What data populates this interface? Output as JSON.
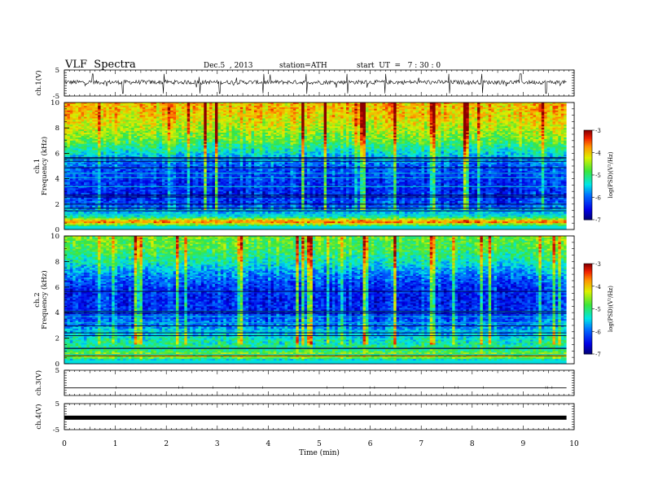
{
  "header": {
    "title": "VLF  Spectra",
    "date": "Dec.5  , 2013",
    "station": "station=ATH",
    "start": "start  UT  =   7 : 30 : 0"
  },
  "chart_data": [
    {
      "type": "line",
      "panel": "ch1-waveform",
      "ylabel": "ch.1(V)",
      "ylim": [
        -5,
        5
      ],
      "yticks": [
        -5,
        5
      ],
      "xlim": [
        0,
        10
      ],
      "baseline": 0.3,
      "spike_times_min": [
        0.55,
        1.15,
        1.95,
        2.65,
        3.05,
        3.9,
        4.75,
        5.55,
        6.3,
        7.55,
        8.2,
        8.95,
        9.45
      ]
    },
    {
      "type": "heatmap",
      "panel": "ch1-spectrogram",
      "ylabel": "ch.1\nFrequency  (kHz)",
      "ylim": [
        0,
        10
      ],
      "yticks": [
        0,
        2,
        4,
        6,
        8,
        10
      ],
      "xlim": [
        0,
        9.85
      ],
      "colorbar": {
        "label": "log(PSD)(V²/Hz)",
        "range": [
          -7,
          -3
        ],
        "ticks": [
          -3,
          -4,
          -5,
          -6,
          -7
        ]
      },
      "profile": [
        {
          "f_khz": 10,
          "logpsd": -3.9
        },
        {
          "f_khz": 9,
          "logpsd": -4.0
        },
        {
          "f_khz": 8,
          "logpsd": -4.3
        },
        {
          "f_khz": 7,
          "logpsd": -4.7
        },
        {
          "f_khz": 6,
          "logpsd": -5.4
        },
        {
          "f_khz": 5,
          "logpsd": -6.0
        },
        {
          "f_khz": 4,
          "logpsd": -6.2
        },
        {
          "f_khz": 3,
          "logpsd": -6.3
        },
        {
          "f_khz": 2,
          "logpsd": -6.1
        },
        {
          "f_khz": 1,
          "logpsd": -5.3
        },
        {
          "f_khz": 0.6,
          "logpsd": -3.5
        },
        {
          "f_khz": 0.3,
          "logpsd": -5.0
        },
        {
          "f_khz": 0,
          "logpsd": -6.8
        }
      ]
    },
    {
      "type": "heatmap",
      "panel": "ch2-spectrogram",
      "ylabel": "ch.2\nFrequency  (kHz)",
      "ylim": [
        0,
        10
      ],
      "yticks": [
        0,
        2,
        4,
        6,
        8,
        10
      ],
      "xlim": [
        0,
        9.85
      ],
      "colorbar": {
        "label": "log(PSD)(V²/Hz)",
        "range": [
          -7,
          -3
        ],
        "ticks": [
          -3,
          -4,
          -5,
          -6,
          -7
        ]
      },
      "profile": [
        {
          "f_khz": 10,
          "logpsd": -4.6
        },
        {
          "f_khz": 9,
          "logpsd": -4.8
        },
        {
          "f_khz": 8,
          "logpsd": -5.2
        },
        {
          "f_khz": 7,
          "logpsd": -5.8
        },
        {
          "f_khz": 6,
          "logpsd": -6.2
        },
        {
          "f_khz": 5,
          "logpsd": -6.3
        },
        {
          "f_khz": 4,
          "logpsd": -6.2
        },
        {
          "f_khz": 3,
          "logpsd": -5.8
        },
        {
          "f_khz": 2,
          "logpsd": -5.3
        },
        {
          "f_khz": 1,
          "logpsd": -5.0
        },
        {
          "f_khz": 0.6,
          "logpsd": -4.2
        },
        {
          "f_khz": 0,
          "logpsd": -6.5
        }
      ]
    },
    {
      "type": "line",
      "panel": "ch3-waveform",
      "ylabel": "ch.3(V)",
      "ylim": [
        -5,
        5
      ],
      "yticks": [
        5
      ],
      "xlim": [
        0,
        10
      ],
      "baseline": -2.0
    },
    {
      "type": "line",
      "panel": "ch4-waveform",
      "ylabel": "ch.4(V)",
      "ylim": [
        -5,
        5
      ],
      "yticks": [
        -5,
        5
      ],
      "xlim": [
        0,
        10
      ],
      "baseline": -0.4
    }
  ],
  "xaxis": {
    "label": "Time  (min)",
    "ticks": [
      "0",
      "1",
      "2",
      "3",
      "4",
      "5",
      "6",
      "7",
      "8",
      "9",
      "10"
    ]
  }
}
